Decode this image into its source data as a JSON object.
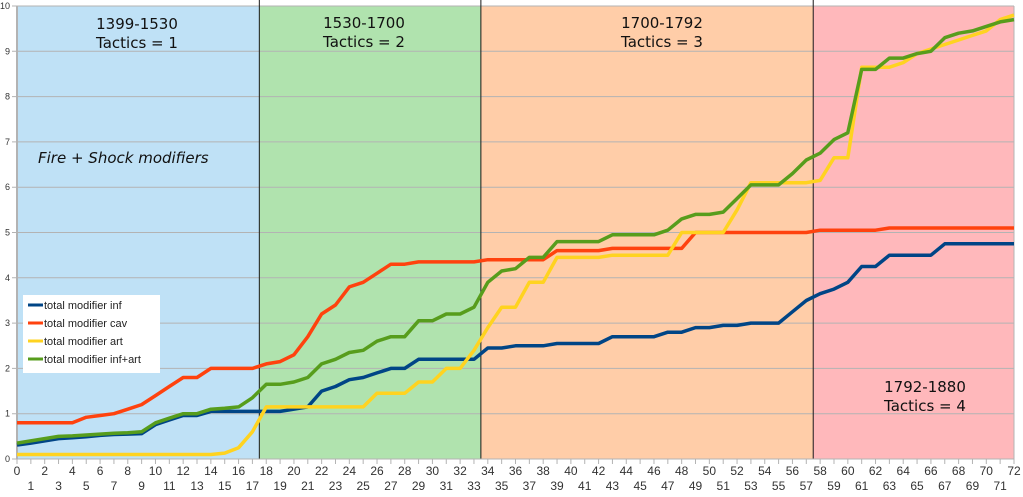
{
  "chart_data": {
    "type": "line",
    "title": "",
    "annotation": "Fire + Shock modifiers",
    "xlabel": "",
    "ylabel": "",
    "xlim": [
      0,
      72
    ],
    "ylim": [
      0,
      10
    ],
    "y_ticks": [
      0,
      1,
      2,
      3,
      4,
      5,
      6,
      7,
      8,
      9,
      10
    ],
    "x_ticks_top_row": [
      0,
      2,
      4,
      6,
      8,
      10,
      12,
      14,
      16,
      18,
      20,
      22,
      24,
      26,
      28,
      30,
      32,
      34,
      36,
      38,
      40,
      42,
      44,
      46,
      48,
      50,
      52,
      54,
      56,
      58,
      60,
      62,
      64,
      66,
      68,
      70,
      72
    ],
    "x_ticks_bottom_row": [
      1,
      3,
      5,
      7,
      9,
      11,
      13,
      15,
      17,
      19,
      21,
      23,
      25,
      27,
      29,
      31,
      33,
      35,
      37,
      39,
      41,
      43,
      45,
      47,
      49,
      51,
      53,
      55,
      57,
      59,
      61,
      63,
      65,
      67,
      69,
      71
    ],
    "grid": true,
    "legend_position": "left-middle",
    "bands": [
      {
        "from": 0,
        "to": 17.5,
        "color": "#bfe1f6",
        "label_line1": "1399-1530",
        "label_line2": "Tactics  = 1",
        "label_pos": "top"
      },
      {
        "from": 17.5,
        "to": 33.5,
        "color": "#b0e3ae",
        "label_line1": "1530-1700",
        "label_line2": "Tactics = 2",
        "label_pos": "top"
      },
      {
        "from": 33.5,
        "to": 57.5,
        "color": "#ffcda8",
        "label_line1": "1700-1792",
        "label_line2": "Tactics = 3",
        "label_pos": "top"
      },
      {
        "from": 57.5,
        "to": 72,
        "color": "#ffb8bb",
        "label_line1": "1792-1880",
        "label_line2": "Tactics = 4",
        "label_pos": "bottom"
      }
    ],
    "x": [
      0,
      1,
      2,
      3,
      4,
      5,
      6,
      7,
      8,
      9,
      10,
      11,
      12,
      13,
      14,
      15,
      16,
      17,
      18,
      19,
      20,
      21,
      22,
      23,
      24,
      25,
      26,
      27,
      28,
      29,
      30,
      31,
      32,
      33,
      34,
      35,
      36,
      37,
      38,
      39,
      40,
      41,
      42,
      43,
      44,
      45,
      46,
      47,
      48,
      49,
      50,
      51,
      52,
      53,
      54,
      55,
      56,
      57,
      58,
      59,
      60,
      61,
      62,
      63,
      64,
      65,
      66,
      67,
      68,
      69,
      70,
      71,
      72
    ],
    "series": [
      {
        "name": "total modifier inf",
        "color": "#004586",
        "values": [
          0.31,
          0.35,
          0.4,
          0.45,
          0.47,
          0.49,
          0.52,
          0.54,
          0.55,
          0.56,
          0.76,
          0.86,
          0.96,
          0.96,
          1.05,
          1.05,
          1.05,
          1.05,
          1.05,
          1.05,
          1.1,
          1.15,
          1.5,
          1.6,
          1.75,
          1.8,
          1.9,
          2.0,
          2.0,
          2.2,
          2.2,
          2.2,
          2.2,
          2.2,
          2.45,
          2.45,
          2.5,
          2.5,
          2.5,
          2.55,
          2.55,
          2.55,
          2.55,
          2.7,
          2.7,
          2.7,
          2.7,
          2.8,
          2.8,
          2.9,
          2.9,
          2.95,
          2.95,
          3.0,
          3.0,
          3.0,
          3.25,
          3.5,
          3.65,
          3.75,
          3.9,
          4.25,
          4.25,
          4.5,
          4.5,
          4.5,
          4.5,
          4.75,
          4.75,
          4.75,
          4.75,
          4.75,
          4.75
        ]
      },
      {
        "name": "total modifier cav",
        "color": "#ff420e",
        "values": [
          0.8,
          0.8,
          0.8,
          0.8,
          0.8,
          0.92,
          0.96,
          1.0,
          1.1,
          1.2,
          1.4,
          1.6,
          1.8,
          1.8,
          2.0,
          2.0,
          2.0,
          2.0,
          2.1,
          2.15,
          2.3,
          2.7,
          3.2,
          3.4,
          3.8,
          3.9,
          4.1,
          4.3,
          4.3,
          4.35,
          4.35,
          4.35,
          4.35,
          4.35,
          4.4,
          4.4,
          4.4,
          4.4,
          4.4,
          4.6,
          4.6,
          4.6,
          4.6,
          4.65,
          4.65,
          4.65,
          4.65,
          4.65,
          4.65,
          5.0,
          5.0,
          5.0,
          5.0,
          5.0,
          5.0,
          5.0,
          5.0,
          5.0,
          5.05,
          5.05,
          5.05,
          5.05,
          5.05,
          5.1,
          5.1,
          5.1,
          5.1,
          5.1,
          5.1,
          5.1,
          5.1,
          5.1,
          5.1
        ]
      },
      {
        "name": "total modifier art",
        "color": "#ffd320",
        "values": [
          0.1,
          0.1,
          0.1,
          0.1,
          0.1,
          0.1,
          0.1,
          0.1,
          0.1,
          0.1,
          0.1,
          0.1,
          0.1,
          0.1,
          0.1,
          0.13,
          0.25,
          0.6,
          1.15,
          1.15,
          1.15,
          1.15,
          1.15,
          1.15,
          1.15,
          1.15,
          1.45,
          1.45,
          1.45,
          1.7,
          1.7,
          2.0,
          2.0,
          2.4,
          2.9,
          3.35,
          3.35,
          3.9,
          3.9,
          4.45,
          4.45,
          4.45,
          4.45,
          4.5,
          4.5,
          4.5,
          4.5,
          4.5,
          5.0,
          5.0,
          5.0,
          5.0,
          5.5,
          6.1,
          6.1,
          6.1,
          6.1,
          6.1,
          6.15,
          6.65,
          6.65,
          8.65,
          8.65,
          8.65,
          8.75,
          8.95,
          9.05,
          9.15,
          9.25,
          9.35,
          9.45,
          9.7,
          9.8
        ]
      },
      {
        "name": "total modifier inf+art",
        "color": "#579d1c",
        "values": [
          0.35,
          0.4,
          0.45,
          0.5,
          0.51,
          0.53,
          0.55,
          0.57,
          0.58,
          0.6,
          0.8,
          0.9,
          1.0,
          1.0,
          1.1,
          1.12,
          1.15,
          1.35,
          1.65,
          1.65,
          1.7,
          1.8,
          2.1,
          2.2,
          2.35,
          2.4,
          2.6,
          2.7,
          2.7,
          3.05,
          3.05,
          3.2,
          3.2,
          3.35,
          3.9,
          4.15,
          4.2,
          4.45,
          4.45,
          4.8,
          4.8,
          4.8,
          4.8,
          4.95,
          4.95,
          4.95,
          4.95,
          5.05,
          5.3,
          5.4,
          5.4,
          5.45,
          5.75,
          6.05,
          6.05,
          6.05,
          6.3,
          6.6,
          6.75,
          7.05,
          7.2,
          8.6,
          8.6,
          8.85,
          8.85,
          8.95,
          9.0,
          9.3,
          9.4,
          9.45,
          9.55,
          9.65,
          9.7
        ]
      }
    ]
  },
  "legend": {
    "items": [
      {
        "label": "total modifier inf",
        "color": "#004586"
      },
      {
        "label": "total modifier cav",
        "color": "#ff420e"
      },
      {
        "label": "total modifier art",
        "color": "#ffd320"
      },
      {
        "label": "total modifier inf+art",
        "color": "#579d1c"
      }
    ]
  },
  "bands_text": {
    "b0_l1": "1399-1530",
    "b0_l2": "Tactics  = 1",
    "b1_l1": "1530-1700",
    "b1_l2": "Tactics = 2",
    "b2_l1": "1700-1792",
    "b2_l2": "Tactics = 3",
    "b3_l1": "1792-1880",
    "b3_l2": "Tactics = 4"
  },
  "annotation": "Fire + Shock modifiers"
}
